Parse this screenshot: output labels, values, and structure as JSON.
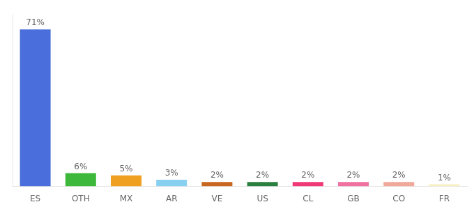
{
  "chart_data": {
    "type": "bar",
    "categories": [
      "ES",
      "OTH",
      "MX",
      "AR",
      "VE",
      "US",
      "CL",
      "GB",
      "CO",
      "FR"
    ],
    "values": [
      71,
      6,
      5,
      3,
      2,
      2,
      2,
      2,
      2,
      1
    ],
    "value_labels": [
      "71%",
      "6%",
      "5%",
      "3%",
      "2%",
      "2%",
      "2%",
      "2%",
      "2%",
      "1%"
    ],
    "colors": [
      "#4a6fdc",
      "#3db83b",
      "#f0a020",
      "#88d0f0",
      "#c86820",
      "#2a8040",
      "#f03878",
      "#f070a0",
      "#f0a898",
      "#f8f0c0"
    ],
    "ylim": [
      0,
      78
    ],
    "data_labels": true,
    "grid": false,
    "tick_labels": "x"
  }
}
